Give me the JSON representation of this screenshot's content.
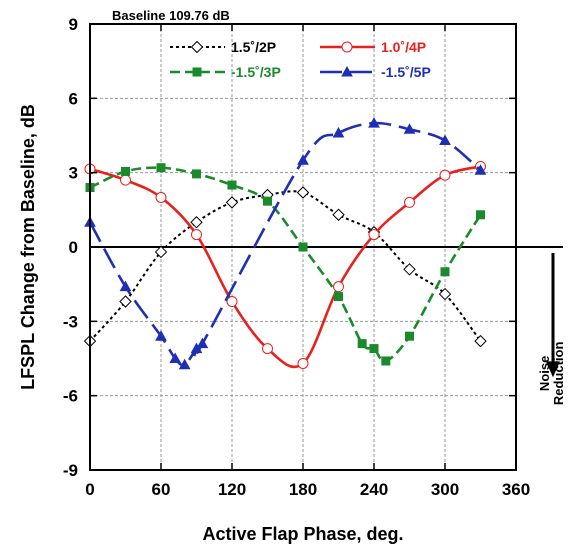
{
  "chart_data": {
    "type": "line",
    "annotation_top": "Baseline 109.76 dB",
    "xlabel": "Active Flap Phase, deg.",
    "ylabel": "LFSPL Change from Baseline, dB",
    "xlim": [
      0,
      360
    ],
    "ylim": [
      -9,
      9
    ],
    "xticks": [
      "0",
      "60",
      "120",
      "180",
      "240",
      "300",
      "360"
    ],
    "yticks": [
      "-9",
      "-6",
      "-3",
      "0",
      "3",
      "6",
      "9"
    ],
    "grid": true,
    "legend_position": "top",
    "side_annotation": {
      "line1": "Noise",
      "line2": "Reduction"
    },
    "series": [
      {
        "name": "1.5˚/2P",
        "color": "#000000",
        "marker": "diamond-open",
        "dash": "dotted",
        "x": [
          0,
          30,
          60,
          90,
          120,
          150,
          180,
          210,
          240,
          270,
          300,
          330
        ],
        "y": [
          -3.8,
          -2.2,
          -0.2,
          1.0,
          1.8,
          2.1,
          2.2,
          1.3,
          0.6,
          -0.9,
          -1.9,
          -3.8
        ]
      },
      {
        "name": "1.0˚/4P",
        "color": "#e8211e",
        "marker": "circle-open",
        "dash": "solid",
        "x": [
          0,
          30,
          60,
          90,
          120,
          150,
          180,
          210,
          240,
          270,
          300,
          330
        ],
        "y": [
          3.15,
          2.7,
          2.0,
          0.5,
          -2.2,
          -4.1,
          -4.7,
          -1.6,
          0.5,
          1.8,
          2.9,
          3.25
        ]
      },
      {
        "name": "-1.5˚/3P",
        "color": "#1b8a2a",
        "marker": "square-filled",
        "dash": "dashed",
        "x": [
          0,
          30,
          60,
          90,
          120,
          150,
          180,
          210,
          230,
          240,
          250,
          270,
          300,
          330
        ],
        "y": [
          2.4,
          3.05,
          3.2,
          2.95,
          2.5,
          1.85,
          0.0,
          -2.0,
          -3.9,
          -4.1,
          -4.6,
          -3.6,
          -1.0,
          1.3
        ]
      },
      {
        "name": "-1.5˚/5P",
        "color": "#1f2fb3",
        "marker": "triangle-filled",
        "dash": "longdash",
        "x": [
          0,
          30,
          60,
          72,
          80,
          90,
          95,
          180,
          210,
          240,
          270,
          300,
          330
        ],
        "y": [
          1.0,
          -1.6,
          -3.6,
          -4.5,
          -4.75,
          -4.1,
          -3.9,
          3.5,
          4.6,
          5.0,
          4.75,
          4.3,
          3.1
        ]
      }
    ]
  }
}
